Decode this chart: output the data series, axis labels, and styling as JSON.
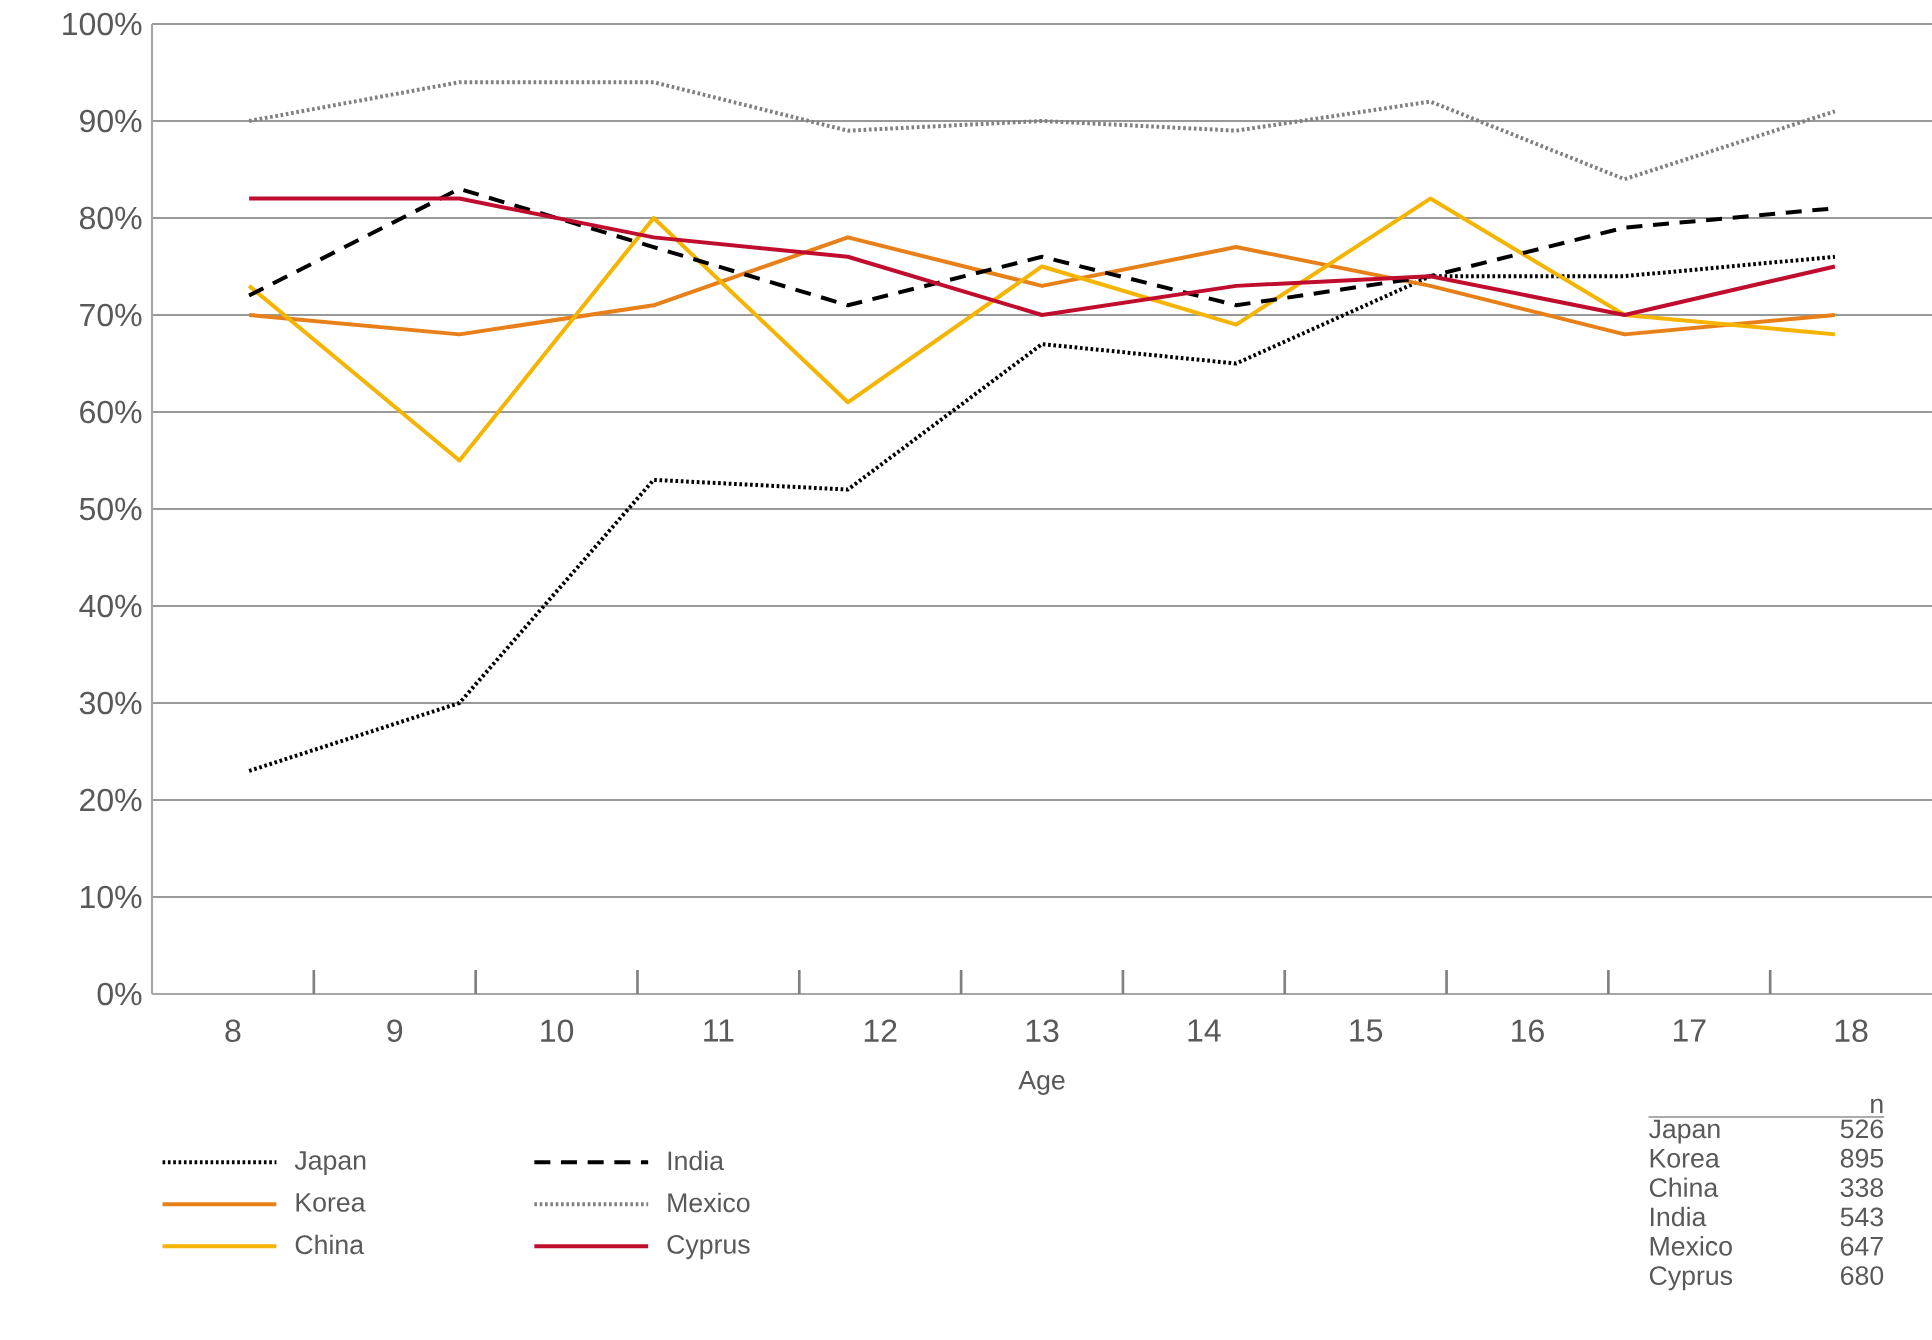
{
  "chart_data": {
    "type": "line",
    "xlabel": "Age",
    "xlim": [
      7.5,
      18.5
    ],
    "ylim": [
      0,
      100
    ],
    "xticks": [
      8,
      {
        "value": 8.5,
        "label": null
      },
      9,
      {
        "value": 9.5,
        "label": null
      },
      10,
      {
        "value": 10.5,
        "label": null
      },
      11,
      {
        "value": 11.5,
        "label": null
      },
      12,
      {
        "value": 12.5,
        "label": null
      },
      13,
      {
        "value": 13.5,
        "label": null
      },
      14,
      {
        "value": 14.5,
        "label": null
      },
      15,
      {
        "value": 15.5,
        "label": null
      },
      16,
      {
        "value": 16.5,
        "label": null
      },
      17,
      {
        "value": 17.5,
        "label": null
      },
      18
    ],
    "yticks": [
      {
        "value": 0,
        "label": "0%"
      },
      {
        "value": 10,
        "label": "10%"
      },
      {
        "value": 20,
        "label": "20%"
      },
      {
        "value": 30,
        "label": "30%"
      },
      {
        "value": 40,
        "label": "40%"
      },
      {
        "value": 50,
        "label": "50%"
      },
      {
        "value": 60,
        "label": "60%"
      },
      {
        "value": 70,
        "label": "70%"
      },
      {
        "value": 80,
        "label": "80%"
      },
      {
        "value": 90,
        "label": "90%"
      },
      {
        "value": 100,
        "label": "100%"
      }
    ],
    "x": [
      8.1,
      9.4,
      10.6,
      11.8,
      13.0,
      14.2,
      15.4,
      16.6,
      17.9
    ],
    "grid": "y",
    "legend": "bottom left",
    "marker": "none",
    "series": [
      {
        "name": "Japan",
        "color": "#000000",
        "line_style": "dotted",
        "values": [
          23,
          30,
          53,
          52,
          67,
          65,
          74,
          74,
          76
        ]
      },
      {
        "name": "Korea",
        "color": "#e8801a",
        "line_style": "solid",
        "values": [
          70,
          68,
          71,
          78,
          73,
          77,
          73,
          68,
          70
        ]
      },
      {
        "name": "China",
        "color": "#f5b400",
        "line_style": "solid",
        "values": [
          73,
          55,
          80,
          61,
          75,
          69,
          82,
          70,
          68
        ]
      },
      {
        "name": "India",
        "color": "#000000",
        "line_style": "dashed",
        "values": [
          72,
          83,
          77,
          71,
          76,
          71,
          74,
          79,
          81
        ]
      },
      {
        "name": "Mexico",
        "color": "#808080",
        "line_style": "dotted",
        "values": [
          90,
          94,
          94,
          89,
          90,
          89,
          92,
          84,
          91
        ]
      },
      {
        "name": "Cyprus",
        "color": "#c00d2d",
        "line_style": "solid",
        "values": [
          82,
          82,
          78,
          76,
          70,
          73,
          74,
          70,
          75
        ]
      }
    ],
    "annotations": [
      "n",
      "Japan",
      "526",
      "Korea",
      "895",
      "China",
      "338",
      "India",
      "543",
      "Mexico",
      "647",
      "Cyprus",
      "680"
    ]
  }
}
